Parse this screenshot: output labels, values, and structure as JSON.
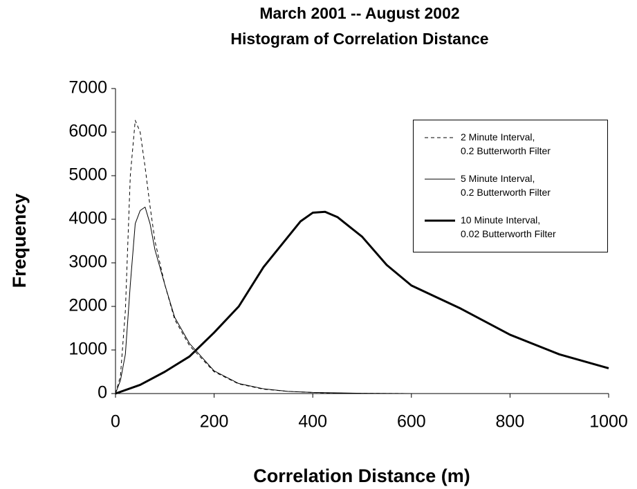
{
  "chart_data": {
    "type": "line",
    "title": "March 2001 -- August 2002",
    "subtitle": "Histogram of Correlation Distance",
    "x_label": "Correlation Distance (m)",
    "y_label": "Frequency",
    "xlim": [
      0,
      1000
    ],
    "xticks": [
      0,
      200,
      400,
      600,
      800,
      1000
    ],
    "ylim": [
      0,
      7000
    ],
    "yticks": [
      0,
      1000,
      2000,
      3000,
      4000,
      5000,
      6000,
      7000
    ],
    "grid": false,
    "legend": "upper right",
    "series": [
      {
        "name": "2 Minute Interval,\n0.2 Butterworth Filter",
        "color": "#000000",
        "line_style": "dashed",
        "line_width": 1,
        "x": [
          0,
          10,
          20,
          30,
          40,
          50,
          60,
          70,
          80,
          100,
          120,
          150,
          200,
          250,
          300,
          350,
          400,
          450,
          500,
          600
        ],
        "values": [
          0,
          400,
          1900,
          5000,
          6270,
          6000,
          5200,
          4300,
          3500,
          2500,
          1700,
          1100,
          500,
          220,
          100,
          50,
          25,
          10,
          5,
          0
        ]
      },
      {
        "name": "5 Minute Interval,\n0.2 Butterworth Filter",
        "color": "#000000",
        "line_style": "solid",
        "line_width": 1,
        "x": [
          0,
          10,
          20,
          30,
          40,
          50,
          60,
          70,
          80,
          100,
          120,
          150,
          200,
          250,
          300,
          350,
          400,
          500,
          600
        ],
        "values": [
          0,
          300,
          900,
          2500,
          3900,
          4200,
          4280,
          3900,
          3300,
          2500,
          1750,
          1150,
          520,
          230,
          110,
          50,
          25,
          5,
          0
        ]
      },
      {
        "name": "10 Minute Interval,\n0.02 Butterworth Filter",
        "color": "#000000",
        "line_style": "solid",
        "line_width": 3,
        "x": [
          0,
          50,
          100,
          150,
          200,
          250,
          300,
          350,
          375,
          400,
          425,
          450,
          500,
          550,
          600,
          700,
          800,
          900,
          1000
        ],
        "values": [
          0,
          200,
          500,
          850,
          1400,
          2000,
          2900,
          3600,
          3950,
          4150,
          4170,
          4050,
          3600,
          2950,
          2480,
          1950,
          1350,
          900,
          580
        ]
      }
    ]
  }
}
